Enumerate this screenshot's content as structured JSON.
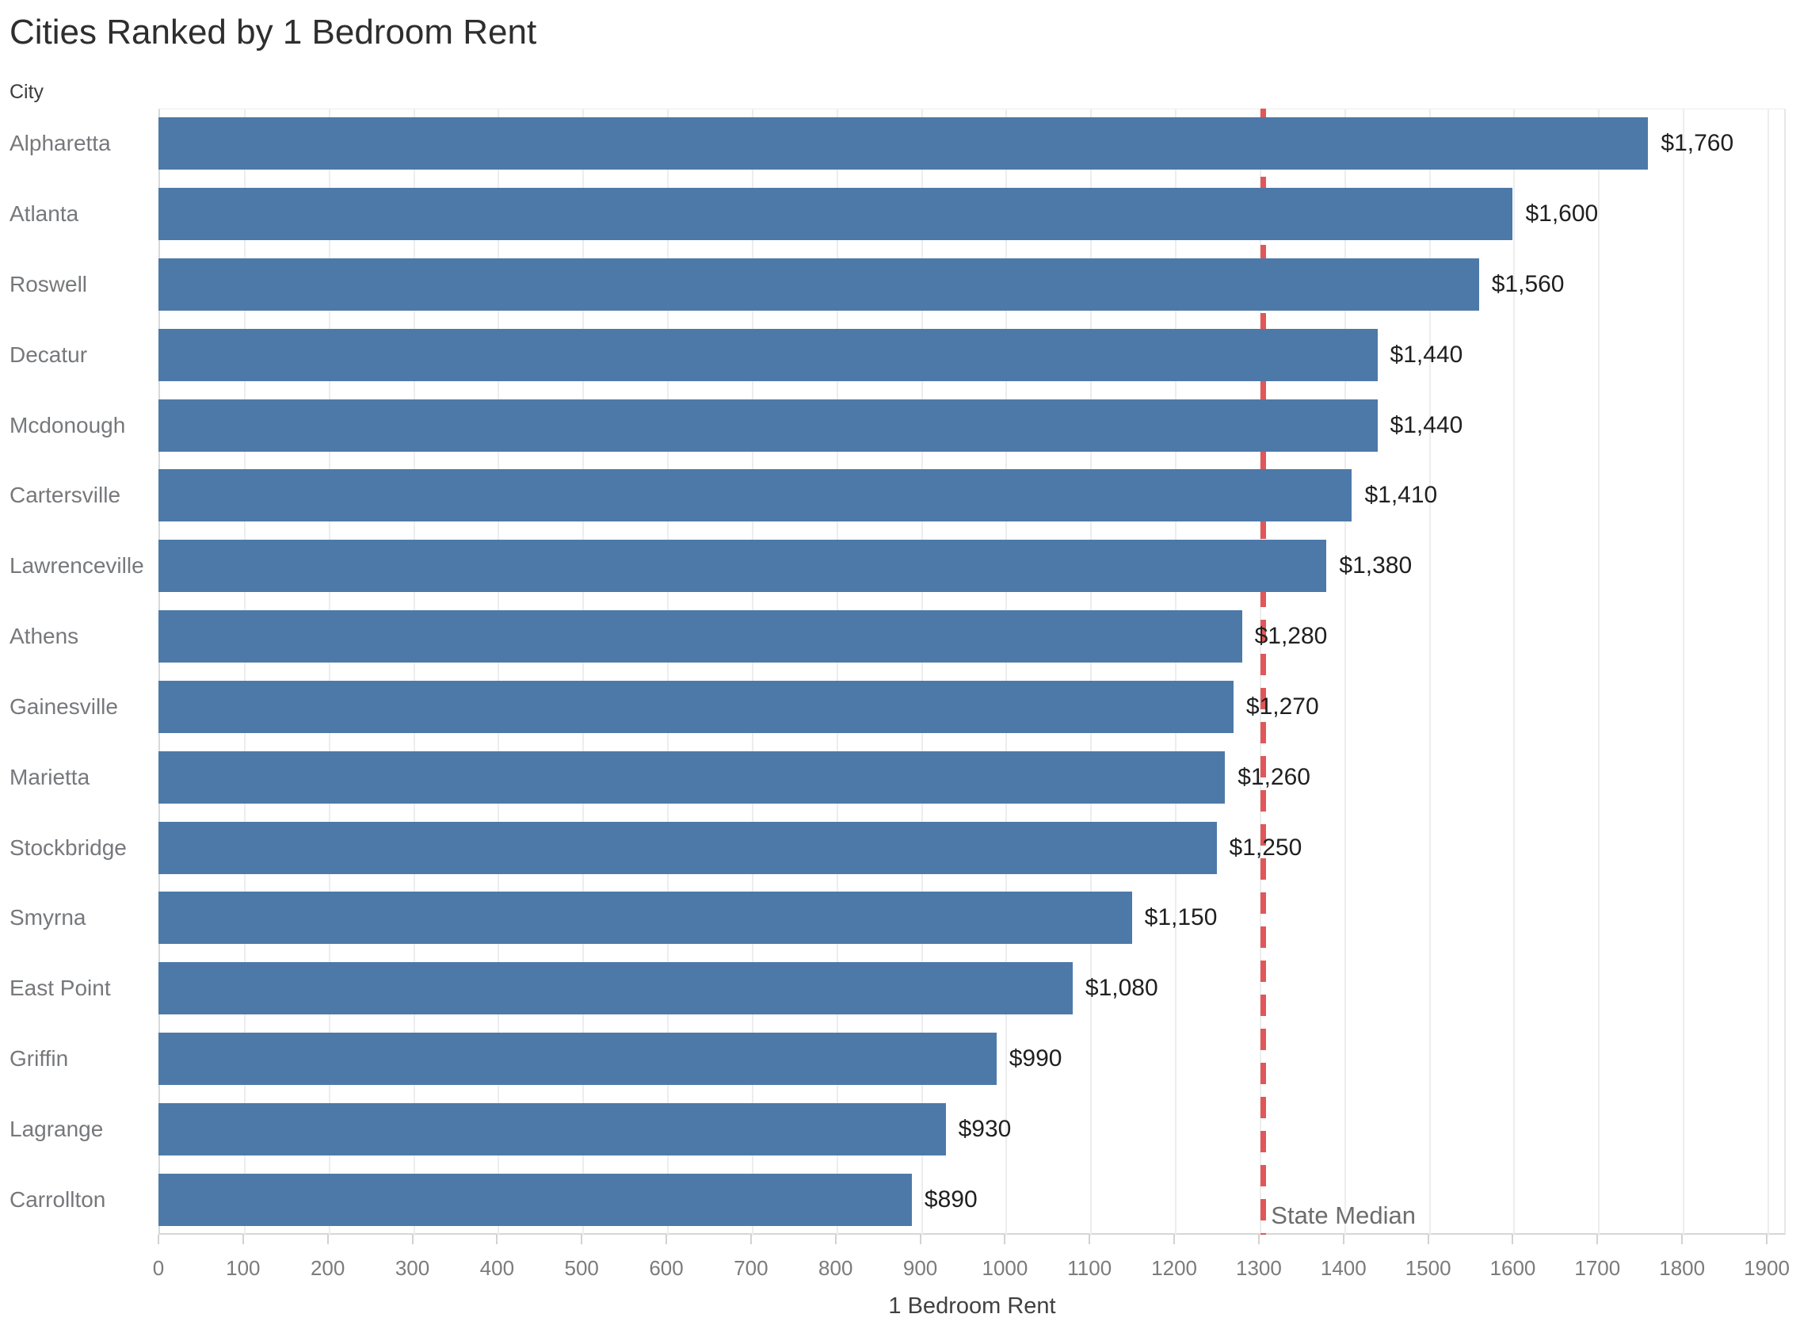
{
  "title": "Cities Ranked by 1 Bedroom Rent",
  "row_header": "City",
  "x_axis_title": "1 Bedroom Rent",
  "reference_line_label": "State Median",
  "colors": {
    "bar": "#4d79a8",
    "reference_line": "#e15759",
    "gridline": "#ededed",
    "axis_line": "#d6d6d6",
    "tick_label": "#7b7b7b",
    "city_label": "#76787b",
    "value_label": "#1f1f1f",
    "title": "#2e2e2e",
    "annotation": "#6d6d6d"
  },
  "chart_data": {
    "type": "bar",
    "orientation": "horizontal",
    "title": "Cities Ranked by 1 Bedroom Rent",
    "xlabel": "1 Bedroom Rent",
    "ylabel": "City",
    "categories": [
      "Alpharetta",
      "Atlanta",
      "Roswell",
      "Decatur",
      "Mcdonough",
      "Cartersville",
      "Lawrenceville",
      "Athens",
      "Gainesville",
      "Marietta",
      "Stockbridge",
      "Smyrna",
      "East Point",
      "Griffin",
      "Lagrange",
      "Carrollton"
    ],
    "values": [
      1760,
      1600,
      1560,
      1440,
      1440,
      1410,
      1380,
      1280,
      1270,
      1260,
      1250,
      1150,
      1080,
      990,
      930,
      890
    ],
    "value_labels": [
      "$1,760",
      "$1,600",
      "$1,560",
      "$1,440",
      "$1,440",
      "$1,410",
      "$1,380",
      "$1,280",
      "$1,270",
      "$1,260",
      "$1,250",
      "$1,150",
      "$1,080",
      "$990",
      "$930",
      "$890"
    ],
    "xlim": [
      0,
      1900
    ],
    "tick_step": 100,
    "grid": true,
    "legend": false,
    "bar_color": "#4d79a8",
    "reference_line": {
      "label": "State Median",
      "value": 1305,
      "style": "dashed",
      "color": "#e15759"
    }
  }
}
